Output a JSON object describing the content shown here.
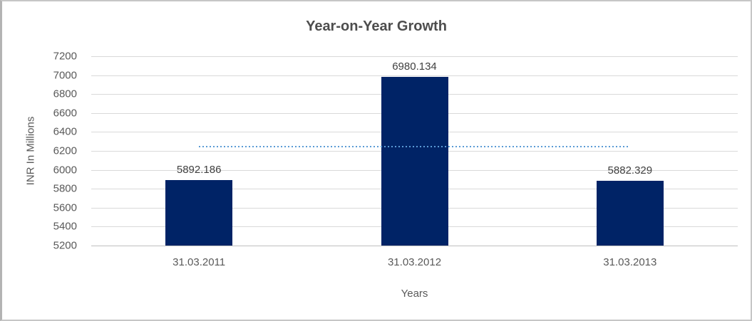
{
  "window": {
    "background": "#ffffff",
    "border_color": "#c6c6c6"
  },
  "chart_data": {
    "type": "bar",
    "title": "Year-on-Year Growth",
    "xlabel": "Years",
    "ylabel": "INR In Millions",
    "categories": [
      "31.03.2011",
      "31.03.2012",
      "31.03.2013"
    ],
    "values": [
      5892.186,
      6980.134,
      5882.329
    ],
    "data_labels": [
      "5892.186",
      "6980.134",
      "5882.329"
    ],
    "ylim": [
      5200,
      7200
    ],
    "ytick_step": 200,
    "yticks": [
      7200,
      7000,
      6800,
      6600,
      6400,
      6200,
      6000,
      5800,
      5600,
      5400,
      5200
    ],
    "grid": true,
    "legend": "none",
    "trendline": {
      "style": "dotted",
      "value": 6251.55
    },
    "colors": {
      "bar": "#002366",
      "trendline": "#5B9BD5",
      "grid": "#d9d9d9",
      "axis_line": "#c0c0c0",
      "title_text": "#4d4d4d",
      "tick_text": "#595959",
      "data_label_text": "#404040"
    }
  }
}
